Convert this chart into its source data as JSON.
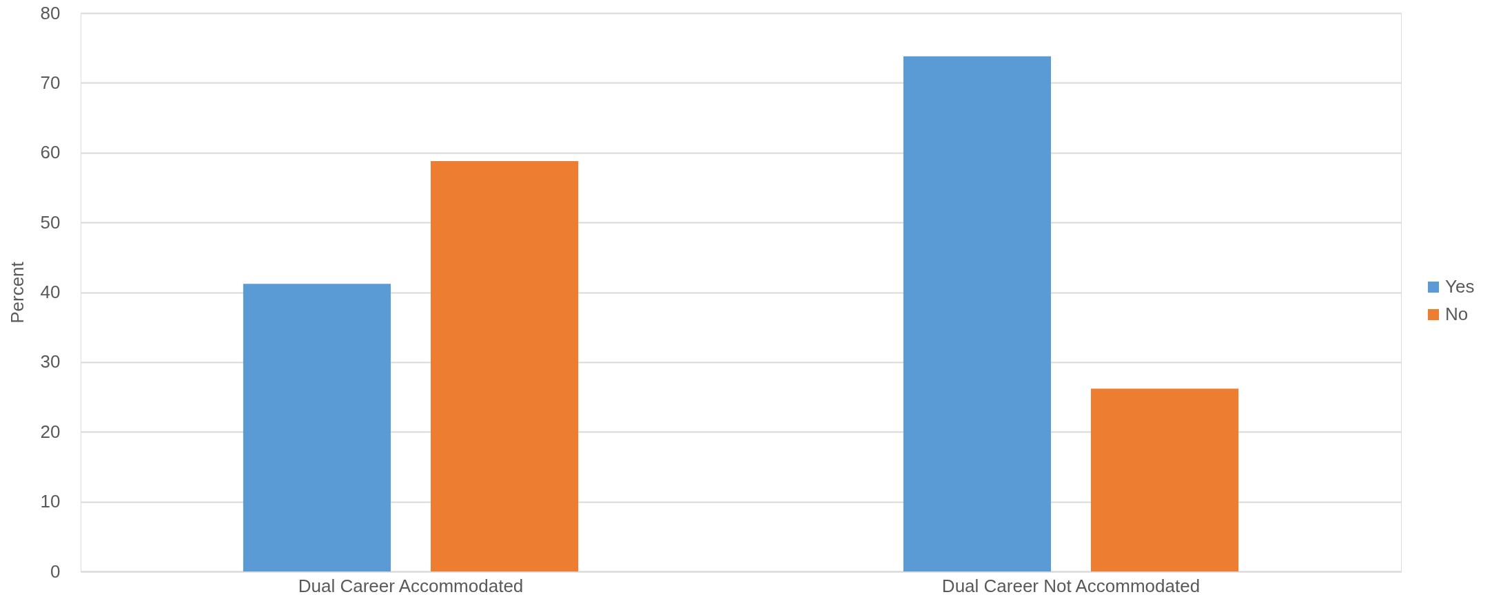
{
  "chart_data": {
    "type": "bar",
    "ylabel": "Percent",
    "categories": [
      "Dual Career Accommodated",
      "Dual Career Not Accommodated"
    ],
    "series": [
      {
        "name": "Yes",
        "color": "#5b9bd5",
        "values": [
          41.2,
          73.8
        ]
      },
      {
        "name": "No",
        "color": "#ed7d31",
        "values": [
          58.8,
          26.2
        ]
      }
    ],
    "ylim": [
      0,
      80
    ],
    "yticks": [
      0,
      10,
      20,
      30,
      40,
      50,
      60,
      70,
      80
    ],
    "grid": "y",
    "legend": "right"
  }
}
